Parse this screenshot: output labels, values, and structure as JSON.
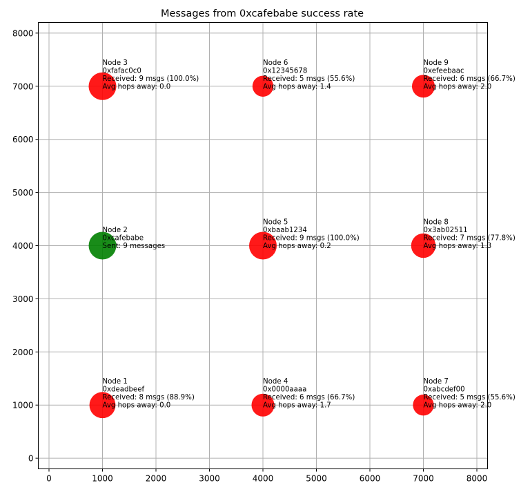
{
  "chart_data": {
    "type": "scatter",
    "title": "Messages from 0xcafebabe success rate",
    "xlabel": "",
    "ylabel": "",
    "xlim": [
      -200,
      8200
    ],
    "ylim": [
      -200,
      8200
    ],
    "xticks": [
      "0",
      "1000",
      "2000",
      "3000",
      "4000",
      "5000",
      "6000",
      "7000",
      "8000"
    ],
    "yticks": [
      "0",
      "1000",
      "2000",
      "3000",
      "4000",
      "5000",
      "6000",
      "7000",
      "8000"
    ],
    "grid": true,
    "colors": {
      "sender": "#008000",
      "receiver": "#ff0000",
      "grid": "#b0b0b0"
    },
    "points": [
      {
        "x": 1000,
        "y": 1000,
        "role": "receiver",
        "rate": 88.9,
        "lines": [
          "Node 1",
          "0xdeadbeef",
          "Received: 8 msgs (88.9%)",
          "Avg hops away: 0.0"
        ]
      },
      {
        "x": 1000,
        "y": 4000,
        "role": "sender",
        "rate": 100.0,
        "lines": [
          "Node 2",
          "0xcafebabe",
          "Sent: 9 messages"
        ]
      },
      {
        "x": 1000,
        "y": 7000,
        "role": "receiver",
        "rate": 100.0,
        "lines": [
          "Node 3",
          "0xfafac0c0",
          "Received: 9 msgs (100.0%)",
          "Avg hops away: 0.0"
        ]
      },
      {
        "x": 4000,
        "y": 1000,
        "role": "receiver",
        "rate": 66.7,
        "lines": [
          "Node 4",
          "0x0000aaaa",
          "Received: 6 msgs (66.7%)",
          "Avg hops away: 1.7"
        ]
      },
      {
        "x": 4000,
        "y": 4000,
        "role": "receiver",
        "rate": 100.0,
        "lines": [
          "Node 5",
          "0xbaab1234",
          "Received: 9 msgs (100.0%)",
          "Avg hops away: 0.2"
        ]
      },
      {
        "x": 4000,
        "y": 7000,
        "role": "receiver",
        "rate": 55.6,
        "lines": [
          "Node 6",
          "0x12345678",
          "Received: 5 msgs (55.6%)",
          "Avg hops away: 1.4"
        ]
      },
      {
        "x": 7000,
        "y": 1000,
        "role": "receiver",
        "rate": 55.6,
        "lines": [
          "Node 7",
          "0xabcdef00",
          "Received: 5 msgs (55.6%)",
          "Avg hops away: 2.0"
        ]
      },
      {
        "x": 7000,
        "y": 4000,
        "role": "receiver",
        "rate": 77.8,
        "lines": [
          "Node 8",
          "0x3ab02511",
          "Received: 7 msgs (77.8%)",
          "Avg hops away: 1.3"
        ]
      },
      {
        "x": 7000,
        "y": 7000,
        "role": "receiver",
        "rate": 66.7,
        "lines": [
          "Node 9",
          "0xefeebaac",
          "Received: 6 msgs (66.7%)",
          "Avg hops away: 2.0"
        ]
      }
    ]
  }
}
